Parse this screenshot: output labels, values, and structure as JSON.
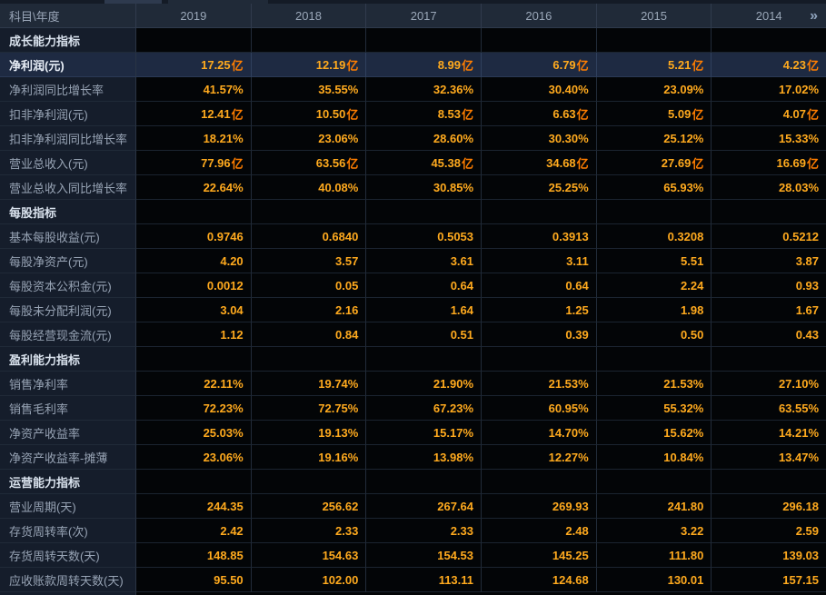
{
  "header": {
    "corner": "科目\\年度",
    "years": [
      "2019",
      "2018",
      "2017",
      "2016",
      "2015",
      "2014"
    ],
    "more_label": "»"
  },
  "colors": {
    "value": "#ffaa1e",
    "unit": "#ff7e00",
    "highlight_bg": "#1e2a42",
    "header_bg": "#202a38",
    "label_bg": "#151d2b",
    "data_bg": "#030507"
  },
  "sections": [
    {
      "title": "成长能力指标",
      "rows": [
        {
          "label": "净利润(元)",
          "unit": "亿",
          "highlighted": true,
          "values": [
            "17.25",
            "12.19",
            "8.99",
            "6.79",
            "5.21",
            "4.23"
          ]
        },
        {
          "label": "净利润同比增长率",
          "unit": "",
          "values": [
            "41.57%",
            "35.55%",
            "32.36%",
            "30.40%",
            "23.09%",
            "17.02%"
          ]
        },
        {
          "label": "扣非净利润(元)",
          "unit": "亿",
          "values": [
            "12.41",
            "10.50",
            "8.53",
            "6.63",
            "5.09",
            "4.07"
          ]
        },
        {
          "label": "扣非净利润同比增长率",
          "unit": "",
          "values": [
            "18.21%",
            "23.06%",
            "28.60%",
            "30.30%",
            "25.12%",
            "15.33%"
          ]
        },
        {
          "label": "营业总收入(元)",
          "unit": "亿",
          "values": [
            "77.96",
            "63.56",
            "45.38",
            "34.68",
            "27.69",
            "16.69"
          ]
        },
        {
          "label": "营业总收入同比增长率",
          "unit": "",
          "values": [
            "22.64%",
            "40.08%",
            "30.85%",
            "25.25%",
            "65.93%",
            "28.03%"
          ]
        }
      ]
    },
    {
      "title": "每股指标",
      "rows": [
        {
          "label": "基本每股收益(元)",
          "unit": "",
          "values": [
            "0.9746",
            "0.6840",
            "0.5053",
            "0.3913",
            "0.3208",
            "0.5212"
          ]
        },
        {
          "label": "每股净资产(元)",
          "unit": "",
          "values": [
            "4.20",
            "3.57",
            "3.61",
            "3.11",
            "5.51",
            "3.87"
          ]
        },
        {
          "label": "每股资本公积金(元)",
          "unit": "",
          "values": [
            "0.0012",
            "0.05",
            "0.64",
            "0.64",
            "2.24",
            "0.93"
          ]
        },
        {
          "label": "每股未分配利润(元)",
          "unit": "",
          "values": [
            "3.04",
            "2.16",
            "1.64",
            "1.25",
            "1.98",
            "1.67"
          ]
        },
        {
          "label": "每股经营现金流(元)",
          "unit": "",
          "values": [
            "1.12",
            "0.84",
            "0.51",
            "0.39",
            "0.50",
            "0.43"
          ]
        }
      ]
    },
    {
      "title": "盈利能力指标",
      "rows": [
        {
          "label": "销售净利率",
          "unit": "",
          "values": [
            "22.11%",
            "19.74%",
            "21.90%",
            "21.53%",
            "21.53%",
            "27.10%"
          ]
        },
        {
          "label": "销售毛利率",
          "unit": "",
          "values": [
            "72.23%",
            "72.75%",
            "67.23%",
            "60.95%",
            "55.32%",
            "63.55%"
          ]
        },
        {
          "label": "净资产收益率",
          "unit": "",
          "values": [
            "25.03%",
            "19.13%",
            "15.17%",
            "14.70%",
            "15.62%",
            "14.21%"
          ]
        },
        {
          "label": "净资产收益率-摊薄",
          "unit": "",
          "values": [
            "23.06%",
            "19.16%",
            "13.98%",
            "12.27%",
            "10.84%",
            "13.47%"
          ]
        }
      ]
    },
    {
      "title": "运营能力指标",
      "rows": [
        {
          "label": "营业周期(天)",
          "unit": "",
          "values": [
            "244.35",
            "256.62",
            "267.64",
            "269.93",
            "241.80",
            "296.18"
          ]
        },
        {
          "label": "存货周转率(次)",
          "unit": "",
          "values": [
            "2.42",
            "2.33",
            "2.33",
            "2.48",
            "3.22",
            "2.59"
          ]
        },
        {
          "label": "存货周转天数(天)",
          "unit": "",
          "values": [
            "148.85",
            "154.63",
            "154.53",
            "145.25",
            "111.80",
            "139.03"
          ]
        },
        {
          "label": "应收账款周转天数(天)",
          "unit": "",
          "values": [
            "95.50",
            "102.00",
            "113.11",
            "124.68",
            "130.01",
            "157.15"
          ]
        }
      ]
    }
  ]
}
